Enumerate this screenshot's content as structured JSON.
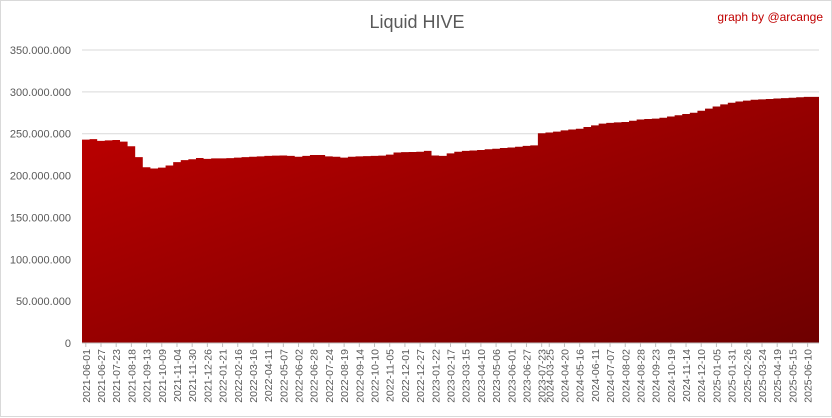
{
  "chart_data": {
    "type": "area",
    "title": "Liquid HIVE",
    "credit": "graph by @arcange",
    "xlabel": "",
    "ylabel": "",
    "ylim": [
      0,
      350000000
    ],
    "yticks": [
      0,
      50000000,
      100000000,
      150000000,
      200000000,
      250000000,
      300000000,
      350000000
    ],
    "ytick_labels": [
      "0",
      "50.000.000",
      "100.000.000",
      "150.000.000",
      "200.000.000",
      "250.000.000",
      "300.000.000",
      "350.000.000"
    ],
    "grid": true,
    "legend": "none",
    "colors": {
      "fill_light": "#c00000",
      "fill_dark": "#6e0000",
      "grid": "#d9d9d9",
      "axis": "#bfbfbf"
    },
    "x_tick_labels": [
      "2021-06-01",
      "2021-06-27",
      "2021-07-23",
      "2021-08-18",
      "2021-09-13",
      "2021-10-09",
      "2021-11-04",
      "2021-11-30",
      "2021-12-26",
      "2022-01-21",
      "2022-02-16",
      "2022-03-16",
      "2022-04-11",
      "2022-05-07",
      "2022-06-02",
      "2022-06-28",
      "2022-07-24",
      "2022-08-19",
      "2022-09-14",
      "2022-10-10",
      "2022-11-05",
      "2022-12-01",
      "2022-12-27",
      "2023-01-22",
      "2023-02-17",
      "2023-03-15",
      "2023-04-10",
      "2023-05-06",
      "2023-06-01",
      "2023-06-27",
      "2023-07-23",
      "2024-03-25",
      "2024-04-20",
      "2024-05-16",
      "2024-06-11",
      "2024-07-07",
      "2024-08-02",
      "2024-08-28",
      "2024-09-23",
      "2024-10-19",
      "2024-11-14",
      "2024-12-10",
      "2025-01-05",
      "2025-01-31",
      "2025-02-26",
      "2025-03-24",
      "2025-04-19",
      "2025-05-15",
      "2025-06-10"
    ],
    "series": [
      {
        "x": [
          "2021-06-01",
          "2021-06-14",
          "2021-06-27",
          "2021-07-10",
          "2021-07-23",
          "2021-08-05",
          "2021-08-18",
          "2021-08-31",
          "2021-09-13",
          "2021-09-26",
          "2021-10-09",
          "2021-10-22",
          "2021-11-04",
          "2021-11-17",
          "2021-11-30",
          "2021-12-13",
          "2021-12-26",
          "2022-01-08",
          "2022-01-21",
          "2022-02-03",
          "2022-02-16",
          "2022-03-02",
          "2022-03-16",
          "2022-03-29",
          "2022-04-11",
          "2022-04-24",
          "2022-05-07",
          "2022-05-20",
          "2022-06-02",
          "2022-06-15",
          "2022-06-28",
          "2022-07-11",
          "2022-07-24",
          "2022-08-06",
          "2022-08-19",
          "2022-09-01",
          "2022-09-14",
          "2022-09-27",
          "2022-10-10",
          "2022-10-23",
          "2022-11-05",
          "2022-11-18",
          "2022-12-01",
          "2022-12-14",
          "2022-12-27",
          "2023-01-09",
          "2023-01-22",
          "2023-02-04",
          "2023-02-17",
          "2023-03-02",
          "2023-03-15",
          "2023-03-28",
          "2023-04-10",
          "2023-04-23",
          "2023-05-06",
          "2023-05-19",
          "2023-06-01",
          "2023-06-14",
          "2023-06-27",
          "2023-07-10",
          "2023-07-23",
          "2024-03-25",
          "2024-04-07",
          "2024-04-20",
          "2024-05-03",
          "2024-05-16",
          "2024-05-29",
          "2024-06-11",
          "2024-06-24",
          "2024-07-07",
          "2024-07-20",
          "2024-08-02",
          "2024-08-15",
          "2024-08-28",
          "2024-09-10",
          "2024-09-23",
          "2024-10-06",
          "2024-10-19",
          "2024-11-01",
          "2024-11-14",
          "2024-11-27",
          "2024-12-10",
          "2024-12-23",
          "2025-01-05",
          "2025-01-18",
          "2025-01-31",
          "2025-02-13",
          "2025-02-26",
          "2025-03-11",
          "2025-03-24",
          "2025-04-06",
          "2025-04-19",
          "2025-05-02",
          "2025-05-15",
          "2025-05-28",
          "2025-06-10",
          "2025-06-23"
        ],
        "values": [
          243000000,
          243500000,
          241500000,
          242000000,
          242500000,
          240500000,
          235000000,
          222000000,
          210000000,
          208500000,
          209500000,
          212000000,
          216000000,
          218500000,
          219500000,
          221000000,
          220000000,
          220500000,
          220500000,
          220800000,
          221500000,
          222000000,
          222500000,
          223000000,
          223500000,
          223800000,
          224000000,
          223500000,
          222500000,
          223500000,
          224500000,
          224500000,
          223000000,
          222500000,
          221500000,
          222500000,
          223000000,
          223200000,
          223500000,
          223800000,
          225000000,
          227500000,
          228000000,
          228200000,
          228500000,
          229500000,
          224000000,
          223500000,
          226500000,
          228500000,
          229500000,
          230000000,
          230500000,
          231500000,
          232000000,
          233000000,
          233500000,
          234500000,
          235500000,
          236000000,
          250500000,
          251500000,
          252500000,
          254000000,
          255000000,
          256000000,
          258000000,
          260000000,
          262000000,
          263000000,
          263500000,
          264000000,
          265500000,
          267000000,
          267500000,
          268000000,
          269000000,
          270500000,
          272000000,
          273500000,
          275000000,
          277500000,
          280000000,
          282500000,
          285000000,
          287000000,
          288500000,
          289500000,
          290500000,
          291000000,
          291500000,
          292000000,
          292500000,
          293000000,
          293500000,
          294000000,
          294000000
        ]
      }
    ]
  }
}
